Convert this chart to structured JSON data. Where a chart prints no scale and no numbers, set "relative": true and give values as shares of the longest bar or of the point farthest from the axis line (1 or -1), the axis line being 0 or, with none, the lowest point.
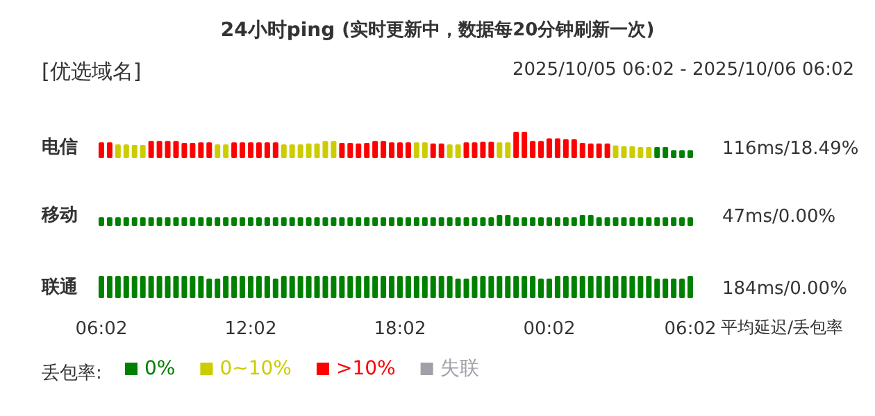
{
  "chart_data": [
    {
      "type": "bar",
      "title": "24小时ping",
      "subtitle": "(实时更新中，数据每20分钟刷新一次)",
      "ylabel": "电信",
      "relative": true,
      "annotations": [
        "[优选域名]",
        "2025/10/05 06:02 - 2025/10/06 06:02",
        "116ms/18.49%"
      ],
      "categories": [
        null,
        null,
        null,
        null,
        null,
        null,
        null,
        null,
        null,
        null,
        null,
        null,
        null,
        null,
        null,
        null,
        null,
        null,
        null,
        null,
        null,
        null,
        null,
        null,
        null,
        null,
        null,
        null,
        null,
        null,
        null,
        null,
        null,
        null,
        null,
        null,
        null,
        null,
        null,
        null,
        null,
        null,
        null,
        null,
        null,
        null,
        null,
        null,
        null,
        null,
        null,
        null,
        null,
        null,
        null,
        null,
        null,
        null,
        null,
        null,
        null,
        null,
        null,
        null,
        null,
        null,
        null,
        null,
        null,
        null,
        null,
        null
      ],
      "values": [
        0.6,
        0.6,
        0.52,
        0.52,
        0.5,
        0.5,
        0.65,
        0.65,
        0.65,
        0.65,
        0.58,
        0.58,
        0.6,
        0.6,
        0.52,
        0.52,
        0.6,
        0.6,
        0.6,
        0.6,
        0.6,
        0.6,
        0.52,
        0.52,
        0.52,
        0.55,
        0.55,
        0.65,
        0.65,
        0.58,
        0.58,
        0.55,
        0.58,
        0.65,
        0.65,
        0.6,
        0.6,
        0.6,
        0.6,
        0.6,
        0.55,
        0.55,
        0.52,
        0.52,
        0.6,
        0.6,
        0.62,
        0.62,
        0.6,
        0.6,
        1,
        1,
        0.65,
        0.65,
        0.75,
        0.75,
        0.72,
        0.72,
        0.58,
        0.55,
        0.55,
        0.55,
        0.48,
        0.45,
        0.45,
        0.42,
        0.42,
        0.42,
        0.42,
        0.3,
        0.3,
        0.3
      ],
      "colors": [
        "#ff0000",
        "#ff0000",
        "#cccc00",
        "#cccc00",
        "#cccc00",
        "#cccc00",
        "#ff0000",
        "#ff0000",
        "#ff0000",
        "#ff0000",
        "#ff0000",
        "#ff0000",
        "#ff0000",
        "#ff0000",
        "#cccc00",
        "#cccc00",
        "#ff0000",
        "#ff0000",
        "#ff0000",
        "#ff0000",
        "#ff0000",
        "#ff0000",
        "#cccc00",
        "#cccc00",
        "#cccc00",
        "#cccc00",
        "#cccc00",
        "#cccc00",
        "#cccc00",
        "#ff0000",
        "#ff0000",
        "#ff0000",
        "#ff0000",
        "#ff0000",
        "#ff0000",
        "#ff0000",
        "#ff0000",
        "#ff0000",
        "#cccc00",
        "#cccc00",
        "#ff0000",
        "#ff0000",
        "#cccc00",
        "#cccc00",
        "#ff0000",
        "#ff0000",
        "#ff0000",
        "#ff0000",
        "#cccc00",
        "#cccc00",
        "#ff0000",
        "#ff0000",
        "#ff0000",
        "#ff0000",
        "#ff0000",
        "#ff0000",
        "#ff0000",
        "#ff0000",
        "#ff0000",
        "#ff0000",
        "#ff0000",
        "#ff0000",
        "#cccc00",
        "#cccc00",
        "#cccc00",
        "#cccc00",
        "#cccc00",
        "#008000",
        "#008000",
        "#008000",
        "#008000",
        "#008000"
      ]
    },
    {
      "type": "bar",
      "ylabel": "移动",
      "relative": true,
      "annotations": [
        "47ms/0.00%"
      ],
      "categories": [
        null,
        null,
        null,
        null,
        null,
        null,
        null,
        null,
        null,
        null,
        null,
        null,
        null,
        null,
        null,
        null,
        null,
        null,
        null,
        null,
        null,
        null,
        null,
        null,
        null,
        null,
        null,
        null,
        null,
        null,
        null,
        null,
        null,
        null,
        null,
        null,
        null,
        null,
        null,
        null,
        null,
        null,
        null,
        null,
        null,
        null,
        null,
        null,
        null,
        null,
        null,
        null,
        null,
        null,
        null,
        null,
        null,
        null,
        null,
        null,
        null,
        null,
        null,
        null,
        null,
        null,
        null,
        null,
        null,
        null,
        null,
        null
      ],
      "series": [
        {
          "color": "#008000",
          "values": [
            0.8,
            0.8,
            0.8,
            0.8,
            0.8,
            0.8,
            0.8,
            0.8,
            0.8,
            0.8,
            0.8,
            0.8,
            0.8,
            0.8,
            0.8,
            0.8,
            0.8,
            0.8,
            0.8,
            0.8,
            0.8,
            0.8,
            0.8,
            0.8,
            0.8,
            0.8,
            0.8,
            0.8,
            0.8,
            0.8,
            0.8,
            0.8,
            0.8,
            0.8,
            0.8,
            0.8,
            0.8,
            0.8,
            0.8,
            0.8,
            0.8,
            0.8,
            0.8,
            0.8,
            0.8,
            0.8,
            0.8,
            0.8,
            1,
            1,
            0.8,
            0.8,
            0.8,
            0.8,
            0.8,
            0.8,
            0.8,
            0.8,
            1,
            1,
            0.8,
            0.8,
            0.8,
            0.8,
            0.8,
            0.8,
            0.8,
            0.8,
            0.8,
            0.8,
            0.8,
            0.8
          ]
        }
      ]
    },
    {
      "type": "bar",
      "ylabel": "联通",
      "xlabel": "平均延迟/丢包率",
      "relative": true,
      "stacked": true,
      "tick_labels": "x",
      "legend": "bottom left",
      "legend_title": "丢包率:",
      "annotations": [
        "184ms/0.00%"
      ],
      "categories": [
        "06:02",
        null,
        null,
        null,
        null,
        null,
        null,
        null,
        null,
        null,
        null,
        null,
        null,
        null,
        null,
        null,
        null,
        null,
        "12:02",
        null,
        null,
        null,
        null,
        null,
        null,
        null,
        null,
        null,
        null,
        null,
        null,
        null,
        null,
        null,
        null,
        null,
        "18:02",
        null,
        null,
        null,
        null,
        null,
        null,
        null,
        null,
        null,
        null,
        null,
        null,
        null,
        null,
        null,
        null,
        null,
        "00:02",
        null,
        null,
        null,
        null,
        null,
        null,
        null,
        null,
        null,
        null,
        null,
        null,
        null,
        null,
        null,
        null,
        "06:02"
      ],
      "series": [
        {
          "name": "0%",
          "color": "#008000",
          "values": [
            1,
            1,
            1,
            1,
            1,
            1,
            1,
            1,
            1,
            1,
            1,
            1,
            1,
            0.88,
            0.88,
            1,
            1,
            1,
            1,
            1,
            1,
            0.88,
            1,
            1,
            1,
            1,
            1,
            1,
            1,
            1,
            1,
            1,
            1,
            1,
            1,
            1,
            1,
            1,
            1,
            1,
            1,
            1,
            1,
            0.88,
            0.88,
            1,
            1,
            1,
            1,
            1,
            1,
            1,
            1,
            0.88,
            0.88,
            1,
            1,
            1,
            1,
            1,
            1,
            1,
            1,
            1,
            1,
            1,
            1,
            0.88,
            0.88,
            0.88,
            0.88,
            1
          ]
        },
        {
          "name": "0~10%",
          "color": "#cccc00",
          "values": [
            null,
            null,
            null,
            null,
            null,
            null,
            null,
            null,
            null,
            null,
            null,
            null,
            null,
            null,
            null,
            null,
            null,
            null,
            null,
            null,
            null,
            null,
            null,
            null,
            null,
            null,
            null,
            null,
            null,
            null,
            null,
            null,
            null,
            null,
            null,
            null,
            null,
            null,
            null,
            null,
            null,
            null,
            null,
            null,
            null,
            null,
            null,
            null,
            null,
            null,
            null,
            null,
            null,
            null,
            null,
            null,
            null,
            null,
            null,
            null,
            null,
            null,
            null,
            null,
            null,
            null,
            null,
            null,
            null,
            null,
            null,
            null
          ]
        },
        {
          "name": ">10%",
          "color": "#ff0000",
          "values": [
            null,
            null,
            null,
            null,
            null,
            null,
            null,
            null,
            null,
            null,
            null,
            null,
            null,
            null,
            null,
            null,
            null,
            null,
            null,
            null,
            null,
            null,
            null,
            null,
            null,
            null,
            null,
            null,
            null,
            null,
            null,
            null,
            null,
            null,
            null,
            null,
            null,
            null,
            null,
            null,
            null,
            null,
            null,
            null,
            null,
            null,
            null,
            null,
            null,
            null,
            null,
            null,
            null,
            null,
            null,
            null,
            null,
            null,
            null,
            null,
            null,
            null,
            null,
            null,
            null,
            null,
            null,
            null,
            null,
            null,
            null,
            null
          ]
        },
        {
          "name": "失联",
          "color": "#a0a0a8",
          "values": [
            null,
            null,
            null,
            null,
            null,
            null,
            null,
            null,
            null,
            null,
            null,
            null,
            null,
            null,
            null,
            null,
            null,
            null,
            null,
            null,
            null,
            null,
            null,
            null,
            null,
            null,
            null,
            null,
            null,
            null,
            null,
            null,
            null,
            null,
            null,
            null,
            null,
            null,
            null,
            null,
            null,
            null,
            null,
            null,
            null,
            null,
            null,
            null,
            null,
            null,
            null,
            null,
            null,
            null,
            null,
            null,
            null,
            null,
            null,
            null,
            null,
            null,
            null,
            null,
            null,
            null,
            null,
            null,
            null,
            null,
            null,
            null
          ]
        }
      ]
    }
  ]
}
